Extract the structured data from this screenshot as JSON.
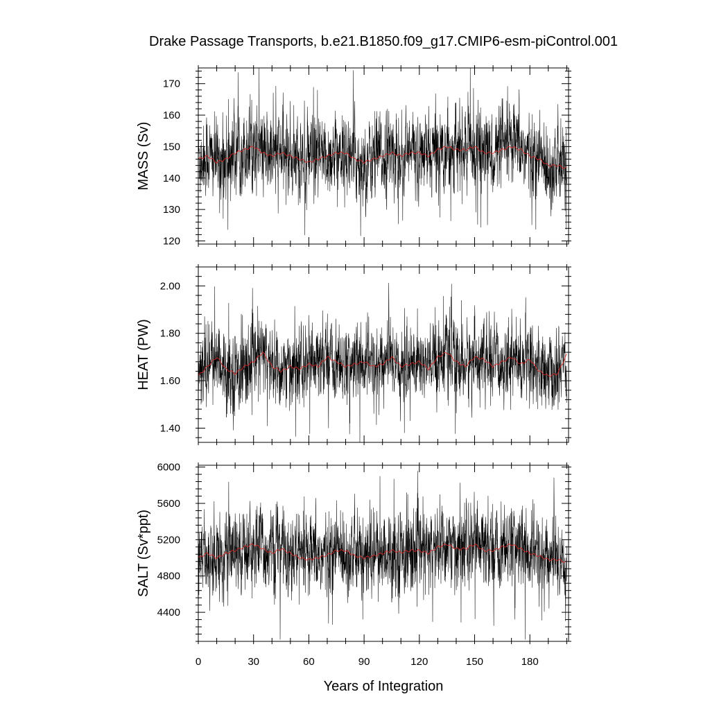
{
  "title": "Drake Passage Transports, b.e21.B1850.f09_g17.CMIP6-esm-piControl.001",
  "xlabel": "Years of Integration",
  "colors": {
    "raw": "#000000",
    "smooth": "#dd2222",
    "axis": "#000000"
  },
  "chart_data": [
    {
      "type": "line",
      "ylabel": "MASS (Sv)",
      "xlim": [
        0,
        201
      ],
      "ylim": [
        119,
        175
      ],
      "xticks": [
        0,
        30,
        60,
        90,
        120,
        150,
        180
      ],
      "yticks": [
        120,
        130,
        140,
        150,
        160,
        170
      ],
      "ytick_labels": [
        "120",
        "130",
        "140",
        "150",
        "160",
        "170"
      ],
      "series": [
        {
          "style": "raw-monthly-noisy",
          "amplitude": 8,
          "min": 119.5,
          "max": 175
        },
        {
          "style": "smoothed",
          "x": [
            0,
            5,
            10,
            15,
            20,
            25,
            30,
            35,
            40,
            45,
            50,
            55,
            60,
            65,
            70,
            75,
            80,
            85,
            90,
            95,
            100,
            105,
            110,
            115,
            120,
            125,
            130,
            135,
            140,
            145,
            150,
            155,
            160,
            165,
            170,
            175,
            180,
            185,
            190,
            195,
            200
          ],
          "values": [
            146,
            147,
            145,
            146,
            148,
            149,
            150,
            148,
            147,
            148,
            147,
            146,
            145,
            146,
            147,
            148,
            148,
            146,
            145,
            146,
            147,
            148,
            147,
            148,
            148,
            147,
            149,
            150,
            149,
            149,
            150,
            148,
            148,
            149,
            150,
            149,
            147,
            146,
            144,
            144,
            143
          ]
        }
      ]
    },
    {
      "type": "line",
      "ylabel": "HEAT (PW)",
      "xlim": [
        0,
        201
      ],
      "ylim": [
        1.34,
        2.08
      ],
      "xticks": [
        0,
        30,
        60,
        90,
        120,
        150,
        180
      ],
      "yticks": [
        1.4,
        1.6,
        1.8,
        2.0
      ],
      "ytick_labels": [
        "1.40",
        "1.60",
        "1.80",
        "2.00"
      ],
      "series": [
        {
          "style": "raw-monthly-noisy",
          "amplitude": 0.1,
          "min": 1.34,
          "max": 2.08
        },
        {
          "style": "smoothed",
          "x": [
            0,
            5,
            10,
            15,
            20,
            25,
            30,
            35,
            40,
            45,
            50,
            55,
            60,
            65,
            70,
            75,
            80,
            85,
            90,
            95,
            100,
            105,
            110,
            115,
            120,
            125,
            130,
            135,
            140,
            145,
            150,
            155,
            160,
            165,
            170,
            175,
            180,
            185,
            190,
            195,
            200
          ],
          "values": [
            1.62,
            1.66,
            1.7,
            1.65,
            1.63,
            1.66,
            1.68,
            1.72,
            1.66,
            1.64,
            1.66,
            1.65,
            1.67,
            1.66,
            1.7,
            1.68,
            1.66,
            1.67,
            1.68,
            1.66,
            1.67,
            1.7,
            1.66,
            1.67,
            1.68,
            1.65,
            1.7,
            1.72,
            1.68,
            1.66,
            1.7,
            1.69,
            1.66,
            1.68,
            1.7,
            1.67,
            1.69,
            1.64,
            1.62,
            1.63,
            1.71
          ]
        }
      ]
    },
    {
      "type": "line",
      "ylabel": "SALT (Sv*ppt)",
      "xlim": [
        0,
        201
      ],
      "ylim": [
        4080,
        6020
      ],
      "xticks": [
        0,
        30,
        60,
        90,
        120,
        150,
        180
      ],
      "xtick_labels": [
        "0",
        "30",
        "60",
        "90",
        "120",
        "150",
        "180"
      ],
      "yticks": [
        4400,
        4800,
        5200,
        5600,
        6000
      ],
      "ytick_labels": [
        "4400",
        "4800",
        "5200",
        "5600",
        "6000"
      ],
      "series": [
        {
          "style": "raw-monthly-noisy",
          "amplitude": 280,
          "min": 4100,
          "max": 6000
        },
        {
          "style": "smoothed",
          "x": [
            0,
            5,
            10,
            15,
            20,
            25,
            30,
            35,
            40,
            45,
            50,
            55,
            60,
            65,
            70,
            75,
            80,
            85,
            90,
            95,
            100,
            105,
            110,
            115,
            120,
            125,
            130,
            135,
            140,
            145,
            150,
            155,
            160,
            165,
            170,
            175,
            180,
            185,
            190,
            195,
            200
          ],
          "values": [
            5000,
            5050,
            5000,
            5050,
            5080,
            5120,
            5150,
            5100,
            5050,
            5100,
            5050,
            5000,
            4980,
            5000,
            5030,
            5080,
            5080,
            5020,
            5000,
            5020,
            5050,
            5080,
            5060,
            5080,
            5080,
            5050,
            5120,
            5150,
            5100,
            5100,
            5150,
            5080,
            5080,
            5120,
            5150,
            5100,
            5050,
            5020,
            4980,
            4980,
            4950
          ]
        }
      ]
    }
  ]
}
